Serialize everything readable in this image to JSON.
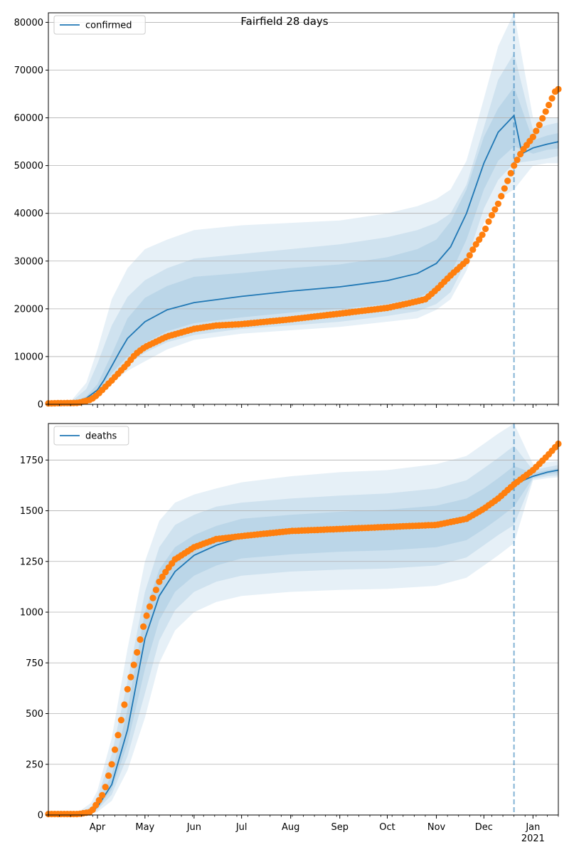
{
  "figure_title": "Fairfield 28 days",
  "colors": {
    "model": "#1f77b4",
    "observed": "#ff7f0e",
    "grid": "#b0b0b0",
    "band": "#1f77b4"
  },
  "chart_data": [
    {
      "type": "line",
      "title": "Fairfield 28 days",
      "legend": {
        "entries": [
          "confirmed"
        ],
        "placement": "top-left"
      },
      "xlim": [
        "2020-03-01",
        "2021-01-17"
      ],
      "ylim": [
        0,
        82000
      ],
      "grid": "horizontal",
      "forecast_start": "2020-12-20",
      "x_ticks": [
        {
          "date": "2020-04-01",
          "label": "Apr"
        },
        {
          "date": "2020-05-01",
          "label": "May"
        },
        {
          "date": "2020-06-01",
          "label": "Jun"
        },
        {
          "date": "2020-07-01",
          "label": "Jul"
        },
        {
          "date": "2020-08-01",
          "label": "Aug"
        },
        {
          "date": "2020-09-01",
          "label": "Sep"
        },
        {
          "date": "2020-10-01",
          "label": "Oct"
        },
        {
          "date": "2020-11-01",
          "label": "Nov"
        },
        {
          "date": "2020-12-01",
          "label": "Dec"
        },
        {
          "date": "2021-01-01",
          "label": "Jan",
          "sublabel": "2021"
        }
      ],
      "y_ticks": [
        0,
        10000,
        20000,
        30000,
        40000,
        50000,
        60000,
        70000,
        80000
      ],
      "series": [
        {
          "name": "confirmed",
          "role": "model median",
          "x": [
            "2020-03-01",
            "2020-03-15",
            "2020-03-25",
            "2020-04-01",
            "2020-04-05",
            "2020-04-10",
            "2020-04-15",
            "2020-04-20",
            "2020-05-01",
            "2020-05-15",
            "2020-06-01",
            "2020-07-01",
            "2020-08-01",
            "2020-09-01",
            "2020-10-01",
            "2020-10-20",
            "2020-11-01",
            "2020-11-10",
            "2020-11-20",
            "2020-12-01",
            "2020-12-10",
            "2020-12-20",
            "2020-12-25",
            "2021-01-01",
            "2021-01-10",
            "2021-01-17"
          ],
          "values": [
            0,
            100,
            1300,
            3000,
            5000,
            8000,
            11000,
            13800,
            17300,
            19800,
            21300,
            22600,
            23700,
            24600,
            25900,
            27400,
            29500,
            33000,
            40000,
            50500,
            57000,
            60500,
            52500,
            53700,
            54500,
            55000
          ]
        },
        {
          "name": "",
          "role": "observed",
          "x": [
            "2020-03-01",
            "2020-03-20",
            "2020-03-28",
            "2020-04-01",
            "2020-04-10",
            "2020-04-20",
            "2020-04-25",
            "2020-05-01",
            "2020-05-15",
            "2020-06-01",
            "2020-06-15",
            "2020-07-01",
            "2020-08-01",
            "2020-09-01",
            "2020-10-01",
            "2020-10-15",
            "2020-10-25",
            "2020-11-01",
            "2020-11-10",
            "2020-11-20",
            "2020-11-25",
            "2020-12-01",
            "2020-12-05",
            "2020-12-10",
            "2020-12-15",
            "2020-12-20",
            "2020-12-25",
            "2021-01-01",
            "2021-01-05",
            "2021-01-10",
            "2021-01-15",
            "2021-01-17"
          ],
          "values": [
            200,
            300,
            1000,
            2000,
            5000,
            8500,
            10500,
            12000,
            14200,
            15800,
            16500,
            16800,
            17800,
            19000,
            20200,
            21200,
            22000,
            24000,
            27000,
            30000,
            33000,
            36000,
            39000,
            42000,
            46000,
            50000,
            53000,
            56000,
            58500,
            62000,
            65500,
            66000
          ]
        }
      ],
      "bands": [
        {
          "x": [
            "2020-03-01",
            "2020-03-15",
            "2020-03-25",
            "2020-04-01",
            "2020-04-10",
            "2020-04-20",
            "2020-05-01",
            "2020-05-15",
            "2020-06-01",
            "2020-07-01",
            "2020-08-01",
            "2020-09-01",
            "2020-10-01",
            "2020-10-20",
            "2020-11-01",
            "2020-11-10",
            "2020-11-20",
            "2020-12-01",
            "2020-12-10",
            "2020-12-20",
            "2021-01-01",
            "2021-01-10",
            "2021-01-17"
          ],
          "lower": [
            0,
            0,
            600,
            1800,
            4500,
            7000,
            9000,
            11500,
            13500,
            14800,
            15500,
            16200,
            17300,
            18000,
            19800,
            22000,
            28000,
            38000,
            43000,
            45000,
            50000,
            50500,
            50500
          ],
          "upper": [
            0,
            600,
            4500,
            11500,
            22000,
            28500,
            32500,
            34500,
            36500,
            37500,
            38000,
            38500,
            40000,
            41500,
            43000,
            45000,
            51000,
            64000,
            75000,
            82000,
            60000,
            60000,
            60000
          ]
        },
        {
          "x": [
            "2020-03-01",
            "2020-03-15",
            "2020-03-25",
            "2020-04-01",
            "2020-04-10",
            "2020-04-20",
            "2020-05-01",
            "2020-05-15",
            "2020-06-01",
            "2020-07-01",
            "2020-08-01",
            "2020-09-01",
            "2020-10-01",
            "2020-10-20",
            "2020-11-01",
            "2020-11-10",
            "2020-11-20",
            "2020-12-01",
            "2020-12-10",
            "2020-12-20",
            "2021-01-01",
            "2021-01-10",
            "2021-01-17"
          ],
          "lower": [
            0,
            0,
            800,
            2200,
            5500,
            8500,
            10800,
            13000,
            14500,
            15800,
            16500,
            17300,
            18500,
            19500,
            21000,
            23500,
            30000,
            41000,
            47000,
            50500,
            51000,
            51500,
            52000
          ],
          "upper": [
            0,
            400,
            3200,
            8500,
            16500,
            22500,
            26000,
            28500,
            30500,
            31500,
            32500,
            33500,
            35000,
            36500,
            38000,
            40000,
            46000,
            58000,
            68000,
            73500,
            57500,
            58500,
            59000
          ]
        },
        {
          "x": [
            "2020-03-01",
            "2020-03-15",
            "2020-03-25",
            "2020-04-01",
            "2020-04-10",
            "2020-04-20",
            "2020-05-01",
            "2020-05-15",
            "2020-06-01",
            "2020-07-01",
            "2020-08-01",
            "2020-09-01",
            "2020-10-01",
            "2020-10-20",
            "2020-11-01",
            "2020-11-10",
            "2020-11-20",
            "2020-12-01",
            "2020-12-10",
            "2020-12-20",
            "2021-01-01",
            "2021-01-10",
            "2021-01-17"
          ],
          "lower": [
            0,
            0,
            1000,
            2600,
            6500,
            10000,
            12800,
            15300,
            17000,
            18200,
            19200,
            20000,
            21000,
            22300,
            24300,
            27300,
            34500,
            45000,
            51000,
            54000,
            52500,
            53300,
            53600
          ],
          "upper": [
            0,
            200,
            1700,
            4200,
            10500,
            18000,
            22300,
            24800,
            26700,
            27500,
            28500,
            29300,
            30800,
            32500,
            34500,
            38300,
            45000,
            56000,
            62000,
            66500,
            55300,
            56300,
            56800
          ]
        }
      ]
    },
    {
      "type": "line",
      "legend": {
        "entries": [
          "deaths"
        ],
        "placement": "top-left"
      },
      "xlim": [
        "2020-03-01",
        "2021-01-17"
      ],
      "ylim": [
        0,
        1930
      ],
      "grid": "horizontal",
      "forecast_start": "2020-12-20",
      "x_ticks": [
        {
          "date": "2020-04-01",
          "label": "Apr"
        },
        {
          "date": "2020-05-01",
          "label": "May"
        },
        {
          "date": "2020-06-01",
          "label": "Jun"
        },
        {
          "date": "2020-07-01",
          "label": "Jul"
        },
        {
          "date": "2020-08-01",
          "label": "Aug"
        },
        {
          "date": "2020-09-01",
          "label": "Sep"
        },
        {
          "date": "2020-10-01",
          "label": "Oct"
        },
        {
          "date": "2020-11-01",
          "label": "Nov"
        },
        {
          "date": "2020-12-01",
          "label": "Dec"
        },
        {
          "date": "2021-01-01",
          "label": "Jan",
          "sublabel": "2021"
        }
      ],
      "y_ticks": [
        0,
        250,
        500,
        750,
        1000,
        1250,
        1500,
        1750
      ],
      "series": [
        {
          "name": "deaths",
          "role": "model median",
          "x": [
            "2020-03-01",
            "2020-03-20",
            "2020-03-28",
            "2020-04-01",
            "2020-04-10",
            "2020-04-20",
            "2020-05-01",
            "2020-05-10",
            "2020-05-20",
            "2020-06-01",
            "2020-06-15",
            "2020-07-01",
            "2020-08-01",
            "2020-09-01",
            "2020-10-01",
            "2020-11-01",
            "2020-11-20",
            "2020-12-01",
            "2020-12-10",
            "2020-12-20",
            "2021-01-01",
            "2021-01-10",
            "2021-01-17"
          ],
          "values": [
            0,
            3,
            15,
            40,
            150,
            420,
            870,
            1080,
            1200,
            1280,
            1330,
            1370,
            1390,
            1405,
            1415,
            1430,
            1460,
            1500,
            1560,
            1630,
            1670,
            1690,
            1700
          ]
        },
        {
          "name": "",
          "role": "observed",
          "x": [
            "2020-03-01",
            "2020-03-20",
            "2020-03-28",
            "2020-04-01",
            "2020-04-05",
            "2020-04-10",
            "2020-04-15",
            "2020-04-20",
            "2020-04-25",
            "2020-05-01",
            "2020-05-05",
            "2020-05-10",
            "2020-05-15",
            "2020-05-20",
            "2020-06-01",
            "2020-06-15",
            "2020-07-01",
            "2020-08-01",
            "2020-09-01",
            "2020-10-01",
            "2020-11-01",
            "2020-11-20",
            "2020-12-01",
            "2020-12-10",
            "2020-12-20",
            "2021-01-01",
            "2021-01-10",
            "2021-01-17"
          ],
          "values": [
            5,
            5,
            15,
            60,
            110,
            250,
            430,
            620,
            770,
            960,
            1050,
            1150,
            1210,
            1260,
            1320,
            1360,
            1375,
            1400,
            1410,
            1420,
            1430,
            1460,
            1510,
            1560,
            1630,
            1700,
            1770,
            1830
          ]
        }
      ],
      "bands": [
        {
          "x": [
            "2020-03-01",
            "2020-03-20",
            "2020-03-28",
            "2020-04-01",
            "2020-04-10",
            "2020-04-20",
            "2020-05-01",
            "2020-05-10",
            "2020-05-20",
            "2020-06-01",
            "2020-06-15",
            "2020-07-01",
            "2020-08-01",
            "2020-09-01",
            "2020-10-01",
            "2020-11-01",
            "2020-11-20",
            "2020-12-01",
            "2020-12-10",
            "2020-12-20",
            "2021-01-01",
            "2021-01-10",
            "2021-01-17"
          ],
          "lower": [
            0,
            0,
            5,
            15,
            70,
            220,
            480,
            750,
            910,
            1000,
            1050,
            1080,
            1100,
            1110,
            1115,
            1130,
            1170,
            1230,
            1280,
            1340,
            1650,
            1660,
            1665
          ],
          "upper": [
            5,
            15,
            60,
            120,
            380,
            820,
            1250,
            1450,
            1540,
            1580,
            1610,
            1640,
            1670,
            1690,
            1700,
            1730,
            1770,
            1830,
            1880,
            1930,
            1730,
            1740,
            1745
          ]
        },
        {
          "x": [
            "2020-03-01",
            "2020-03-20",
            "2020-03-28",
            "2020-04-01",
            "2020-04-10",
            "2020-04-20",
            "2020-05-01",
            "2020-05-10",
            "2020-05-20",
            "2020-06-01",
            "2020-06-15",
            "2020-07-01",
            "2020-08-01",
            "2020-09-01",
            "2020-10-01",
            "2020-11-01",
            "2020-11-20",
            "2020-12-01",
            "2020-12-10",
            "2020-12-20",
            "2021-01-01",
            "2021-01-10",
            "2021-01-17"
          ],
          "lower": [
            0,
            1,
            8,
            25,
            100,
            290,
            600,
            860,
            1010,
            1100,
            1150,
            1180,
            1200,
            1210,
            1215,
            1230,
            1270,
            1330,
            1380,
            1430,
            1658,
            1670,
            1675
          ],
          "upper": [
            3,
            10,
            40,
            90,
            300,
            660,
            1100,
            1320,
            1430,
            1480,
            1520,
            1540,
            1560,
            1575,
            1585,
            1610,
            1650,
            1710,
            1760,
            1820,
            1700,
            1715,
            1725
          ]
        },
        {
          "x": [
            "2020-03-01",
            "2020-03-20",
            "2020-03-28",
            "2020-04-01",
            "2020-04-10",
            "2020-04-20",
            "2020-05-01",
            "2020-05-10",
            "2020-05-20",
            "2020-06-01",
            "2020-06-15",
            "2020-07-01",
            "2020-08-01",
            "2020-09-01",
            "2020-10-01",
            "2020-11-01",
            "2020-11-20",
            "2020-12-01",
            "2020-12-10",
            "2020-12-20",
            "2021-01-01",
            "2021-01-10",
            "2021-01-17"
          ],
          "lower": [
            0,
            2,
            11,
            32,
            125,
            350,
            720,
            960,
            1100,
            1180,
            1230,
            1265,
            1285,
            1298,
            1305,
            1320,
            1355,
            1410,
            1460,
            1520,
            1663,
            1680,
            1686
          ],
          "upper": [
            2,
            6,
            22,
            55,
            200,
            520,
            1000,
            1210,
            1320,
            1380,
            1425,
            1460,
            1480,
            1495,
            1505,
            1525,
            1560,
            1610,
            1660,
            1720,
            1685,
            1700,
            1710
          ]
        }
      ]
    }
  ]
}
